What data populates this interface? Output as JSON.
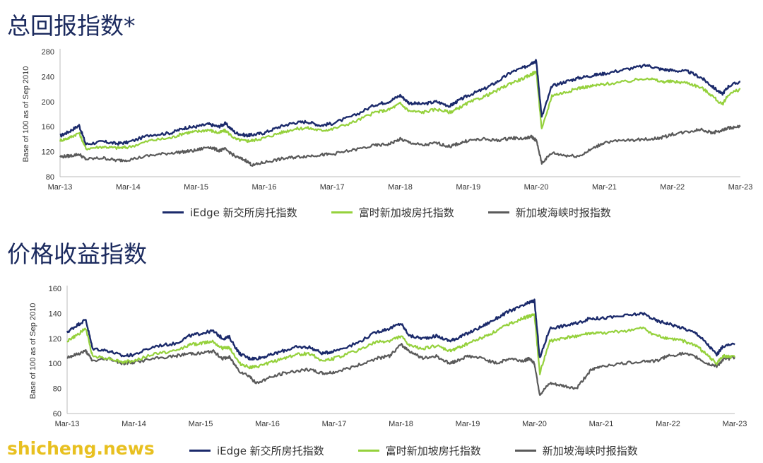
{
  "charts_meta": [
    {
      "id": "chart1",
      "title": "总回报指数*"
    },
    {
      "id": "chart2",
      "title": "价格收益指数"
    }
  ],
  "legend": [
    "iEdge 新交所房托指数",
    "富时新加坡房托指数",
    "新加坡海峡时报指数"
  ],
  "colors": {
    "iedge": "#1b2a6b",
    "ftse": "#95d13c",
    "sti": "#5a5a5a"
  },
  "watermark": "shicheng.news",
  "chart_data": [
    {
      "type": "line",
      "title": "总回报指数*",
      "ylabel": "Base of 100 as of Sep 2010",
      "xlabel": "",
      "x_ticks": [
        "Mar-13",
        "Mar-14",
        "Mar-15",
        "Mar-16",
        "Mar-17",
        "Mar-18",
        "Mar-19",
        "Mar-20",
        "Mar-21",
        "Mar-22",
        "Mar-23"
      ],
      "y_ticks": [
        80,
        120,
        160,
        200,
        240,
        280
      ],
      "ylim": [
        80,
        280
      ],
      "xlim": [
        2013.17,
        2023.17
      ],
      "grid": false,
      "legend_position": "bottom",
      "series": [
        {
          "name": "iEdge 新交所房托指数",
          "color": "#1b2a6b",
          "x": [
            2013.17,
            2013.3,
            2013.45,
            2013.55,
            2013.8,
            2014.0,
            2014.17,
            2014.5,
            2014.8,
            2015.0,
            2015.17,
            2015.35,
            2015.5,
            2015.6,
            2015.75,
            2015.9,
            2016.0,
            2016.17,
            2016.4,
            2016.6,
            2016.8,
            2017.0,
            2017.17,
            2017.5,
            2017.8,
            2018.0,
            2018.17,
            2018.3,
            2018.5,
            2018.7,
            2018.9,
            2019.0,
            2019.17,
            2019.4,
            2019.6,
            2019.8,
            2020.0,
            2020.1,
            2020.17,
            2020.25,
            2020.4,
            2020.6,
            2020.8,
            2021.0,
            2021.17,
            2021.5,
            2021.8,
            2022.0,
            2022.17,
            2022.4,
            2022.6,
            2022.75,
            2022.9,
            2023.0,
            2023.17
          ],
          "y": [
            145,
            152,
            162,
            132,
            136,
            133,
            135,
            147,
            150,
            158,
            160,
            164,
            160,
            165,
            150,
            146,
            147,
            150,
            160,
            166,
            168,
            162,
            165,
            178,
            195,
            200,
            210,
            198,
            196,
            200,
            193,
            200,
            210,
            220,
            232,
            247,
            255,
            262,
            265,
            175,
            225,
            232,
            238,
            242,
            245,
            252,
            258,
            252,
            250,
            248,
            238,
            225,
            212,
            225,
            232
          ]
        },
        {
          "name": "富时新加坡房托指数",
          "color": "#95d13c",
          "x": [
            2013.17,
            2013.3,
            2013.45,
            2013.55,
            2013.8,
            2014.0,
            2014.17,
            2014.5,
            2014.8,
            2015.0,
            2015.17,
            2015.35,
            2015.5,
            2015.6,
            2015.75,
            2015.9,
            2016.0,
            2016.17,
            2016.4,
            2016.6,
            2016.8,
            2017.0,
            2017.17,
            2017.5,
            2017.8,
            2018.0,
            2018.17,
            2018.3,
            2018.5,
            2018.7,
            2018.9,
            2019.0,
            2019.17,
            2019.4,
            2019.6,
            2019.8,
            2020.0,
            2020.1,
            2020.17,
            2020.25,
            2020.4,
            2020.6,
            2020.8,
            2021.0,
            2021.17,
            2021.5,
            2021.8,
            2022.0,
            2022.17,
            2022.4,
            2022.6,
            2022.75,
            2022.9,
            2023.0,
            2023.17
          ],
          "y": [
            138,
            142,
            150,
            125,
            128,
            126,
            127,
            138,
            142,
            150,
            152,
            155,
            150,
            154,
            140,
            137,
            138,
            142,
            150,
            156,
            158,
            154,
            156,
            168,
            183,
            187,
            197,
            185,
            183,
            188,
            183,
            188,
            198,
            208,
            218,
            230,
            238,
            244,
            248,
            155,
            210,
            215,
            222,
            225,
            228,
            232,
            238,
            232,
            232,
            230,
            222,
            210,
            195,
            212,
            220
          ]
        },
        {
          "name": "新加坡海峡时报指数",
          "color": "#5a5a5a",
          "x": [
            2013.17,
            2013.3,
            2013.45,
            2013.55,
            2013.8,
            2014.0,
            2014.17,
            2014.5,
            2014.8,
            2015.0,
            2015.17,
            2015.35,
            2015.5,
            2015.6,
            2015.75,
            2015.9,
            2016.0,
            2016.17,
            2016.4,
            2016.6,
            2016.8,
            2017.0,
            2017.17,
            2017.5,
            2017.8,
            2018.0,
            2018.17,
            2018.3,
            2018.5,
            2018.7,
            2018.9,
            2019.0,
            2019.17,
            2019.4,
            2019.6,
            2019.8,
            2020.0,
            2020.1,
            2020.17,
            2020.25,
            2020.4,
            2020.6,
            2020.8,
            2021.0,
            2021.17,
            2021.5,
            2021.8,
            2022.0,
            2022.17,
            2022.4,
            2022.6,
            2022.75,
            2022.9,
            2023.0,
            2023.17
          ],
          "y": [
            112,
            113,
            116,
            108,
            110,
            106,
            107,
            114,
            118,
            120,
            122,
            128,
            122,
            124,
            112,
            106,
            98,
            103,
            108,
            111,
            113,
            115,
            116,
            123,
            130,
            132,
            140,
            135,
            130,
            134,
            128,
            132,
            138,
            140,
            138,
            142,
            141,
            144,
            138,
            102,
            118,
            114,
            113,
            125,
            135,
            138,
            140,
            142,
            148,
            152,
            156,
            150,
            154,
            158,
            160
          ]
        }
      ]
    },
    {
      "type": "line",
      "title": "价格收益指数",
      "ylabel": "Base of 100 as of Sep 2010",
      "xlabel": "",
      "x_ticks": [
        "Mar-13",
        "Mar-14",
        "Mar-15",
        "Mar-16",
        "Mar-17",
        "Mar-18",
        "Mar-19",
        "Mar-20",
        "Mar-21",
        "Mar-22",
        "Mar-23"
      ],
      "y_ticks": [
        60,
        80,
        100,
        120,
        140,
        160
      ],
      "ylim": [
        60,
        160
      ],
      "xlim": [
        2013.17,
        2023.17
      ],
      "grid": false,
      "legend_position": "bottom",
      "series": [
        {
          "name": "iEdge 新交所房托指数",
          "color": "#1b2a6b",
          "x": [
            2013.17,
            2013.3,
            2013.45,
            2013.55,
            2013.8,
            2014.0,
            2014.17,
            2014.5,
            2014.8,
            2015.0,
            2015.17,
            2015.35,
            2015.5,
            2015.6,
            2015.75,
            2015.9,
            2016.0,
            2016.17,
            2016.4,
            2016.6,
            2016.8,
            2017.0,
            2017.17,
            2017.5,
            2017.8,
            2018.0,
            2018.17,
            2018.3,
            2018.5,
            2018.7,
            2018.9,
            2019.0,
            2019.17,
            2019.4,
            2019.6,
            2019.8,
            2020.0,
            2020.1,
            2020.17,
            2020.25,
            2020.4,
            2020.6,
            2020.8,
            2021.0,
            2021.17,
            2021.5,
            2021.8,
            2022.0,
            2022.17,
            2022.4,
            2022.6,
            2022.75,
            2022.9,
            2023.0,
            2023.17
          ],
          "y": [
            125,
            130,
            135,
            112,
            110,
            106,
            107,
            114,
            116,
            122,
            124,
            126,
            120,
            121,
            108,
            104,
            104,
            106,
            110,
            113,
            113,
            108,
            110,
            116,
            125,
            128,
            132,
            122,
            120,
            122,
            118,
            120,
            124,
            130,
            136,
            142,
            146,
            149,
            150,
            104,
            128,
            130,
            132,
            136,
            136,
            138,
            140,
            134,
            132,
            128,
            124,
            116,
            107,
            114,
            115
          ]
        },
        {
          "name": "富时新加坡房托指数",
          "color": "#95d13c",
          "x": [
            2013.17,
            2013.3,
            2013.45,
            2013.55,
            2013.8,
            2014.0,
            2014.17,
            2014.5,
            2014.8,
            2015.0,
            2015.17,
            2015.35,
            2015.5,
            2015.6,
            2015.75,
            2015.9,
            2016.0,
            2016.17,
            2016.4,
            2016.6,
            2016.8,
            2017.0,
            2017.17,
            2017.5,
            2017.8,
            2018.0,
            2018.17,
            2018.3,
            2018.5,
            2018.7,
            2018.9,
            2019.0,
            2019.17,
            2019.4,
            2019.6,
            2019.8,
            2020.0,
            2020.1,
            2020.17,
            2020.25,
            2020.4,
            2020.6,
            2020.8,
            2021.0,
            2021.17,
            2021.5,
            2021.8,
            2022.0,
            2022.17,
            2022.4,
            2022.6,
            2022.75,
            2022.9,
            2023.0,
            2023.17
          ],
          "y": [
            118,
            122,
            128,
            106,
            104,
            101,
            102,
            108,
            110,
            115,
            116,
            118,
            112,
            113,
            100,
            97,
            97,
            100,
            104,
            107,
            108,
            102,
            104,
            110,
            117,
            118,
            122,
            114,
            112,
            114,
            110,
            112,
            116,
            121,
            126,
            132,
            136,
            138,
            139,
            92,
            118,
            120,
            122,
            124,
            124,
            126,
            128,
            122,
            120,
            118,
            114,
            107,
            100,
            106,
            105
          ]
        },
        {
          "name": "新加坡海峡时报指数",
          "color": "#5a5a5a",
          "x": [
            2013.17,
            2013.3,
            2013.45,
            2013.55,
            2013.8,
            2014.0,
            2014.17,
            2014.5,
            2014.8,
            2015.0,
            2015.17,
            2015.35,
            2015.5,
            2015.6,
            2015.75,
            2015.9,
            2016.0,
            2016.17,
            2016.4,
            2016.6,
            2016.8,
            2017.0,
            2017.17,
            2017.5,
            2017.8,
            2018.0,
            2018.17,
            2018.3,
            2018.5,
            2018.7,
            2018.9,
            2019.0,
            2019.17,
            2019.4,
            2019.6,
            2019.8,
            2020.0,
            2020.1,
            2020.17,
            2020.25,
            2020.4,
            2020.6,
            2020.8,
            2021.0,
            2021.17,
            2021.5,
            2021.8,
            2022.0,
            2022.17,
            2022.4,
            2022.6,
            2022.75,
            2022.9,
            2023.0,
            2023.17
          ],
          "y": [
            105,
            107,
            110,
            102,
            104,
            100,
            101,
            104,
            106,
            108,
            108,
            110,
            104,
            105,
            94,
            90,
            84,
            88,
            92,
            94,
            95,
            92,
            93,
            98,
            104,
            106,
            115,
            110,
            104,
            106,
            100,
            102,
            106,
            104,
            100,
            104,
            102,
            104,
            100,
            75,
            84,
            82,
            80,
            94,
            98,
            100,
            102,
            102,
            106,
            108,
            105,
            100,
            98,
            103,
            105
          ]
        }
      ]
    }
  ]
}
